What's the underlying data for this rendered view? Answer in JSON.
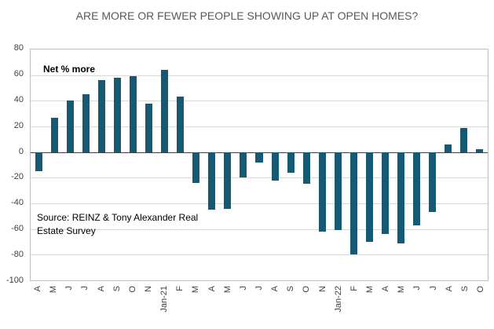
{
  "colors": {
    "bar": "#155972",
    "title": "#595959",
    "grid": "#d9d9d9",
    "zero_line": "#404040",
    "plot_border": "#bfbfbf",
    "tick_text": "#404040"
  },
  "chart_data": {
    "type": "bar",
    "title": "ARE MORE OR FEWER PEOPLE SHOWING UP AT OPEN HOMES?",
    "annotation": "Net % more",
    "source": "Source: REINZ & Tony Alexander Real Estate Survey",
    "categories": [
      "A",
      "M",
      "J",
      "J",
      "A",
      "S",
      "O",
      "N",
      "Jan-21",
      "F",
      "M",
      "A",
      "M",
      "J",
      "J",
      "A",
      "S",
      "O",
      "N",
      "Jan-22",
      "F",
      "M",
      "A",
      "M",
      "J",
      "J",
      "A",
      "S",
      "O"
    ],
    "values": [
      -15,
      27,
      40,
      45,
      56,
      58,
      59,
      38,
      64,
      43,
      -24,
      -45,
      -44,
      -20,
      -8,
      -22,
      -16,
      -25,
      -62,
      -61,
      -80,
      -70,
      -64,
      -71,
      -57,
      -47,
      6,
      19,
      2
    ],
    "xlabel": "",
    "ylabel": "",
    "ylim": [
      -100,
      80
    ],
    "yticks": [
      80,
      60,
      40,
      20,
      0,
      -20,
      -40,
      -60,
      -80,
      -100
    ],
    "grid": true,
    "legend": false
  }
}
